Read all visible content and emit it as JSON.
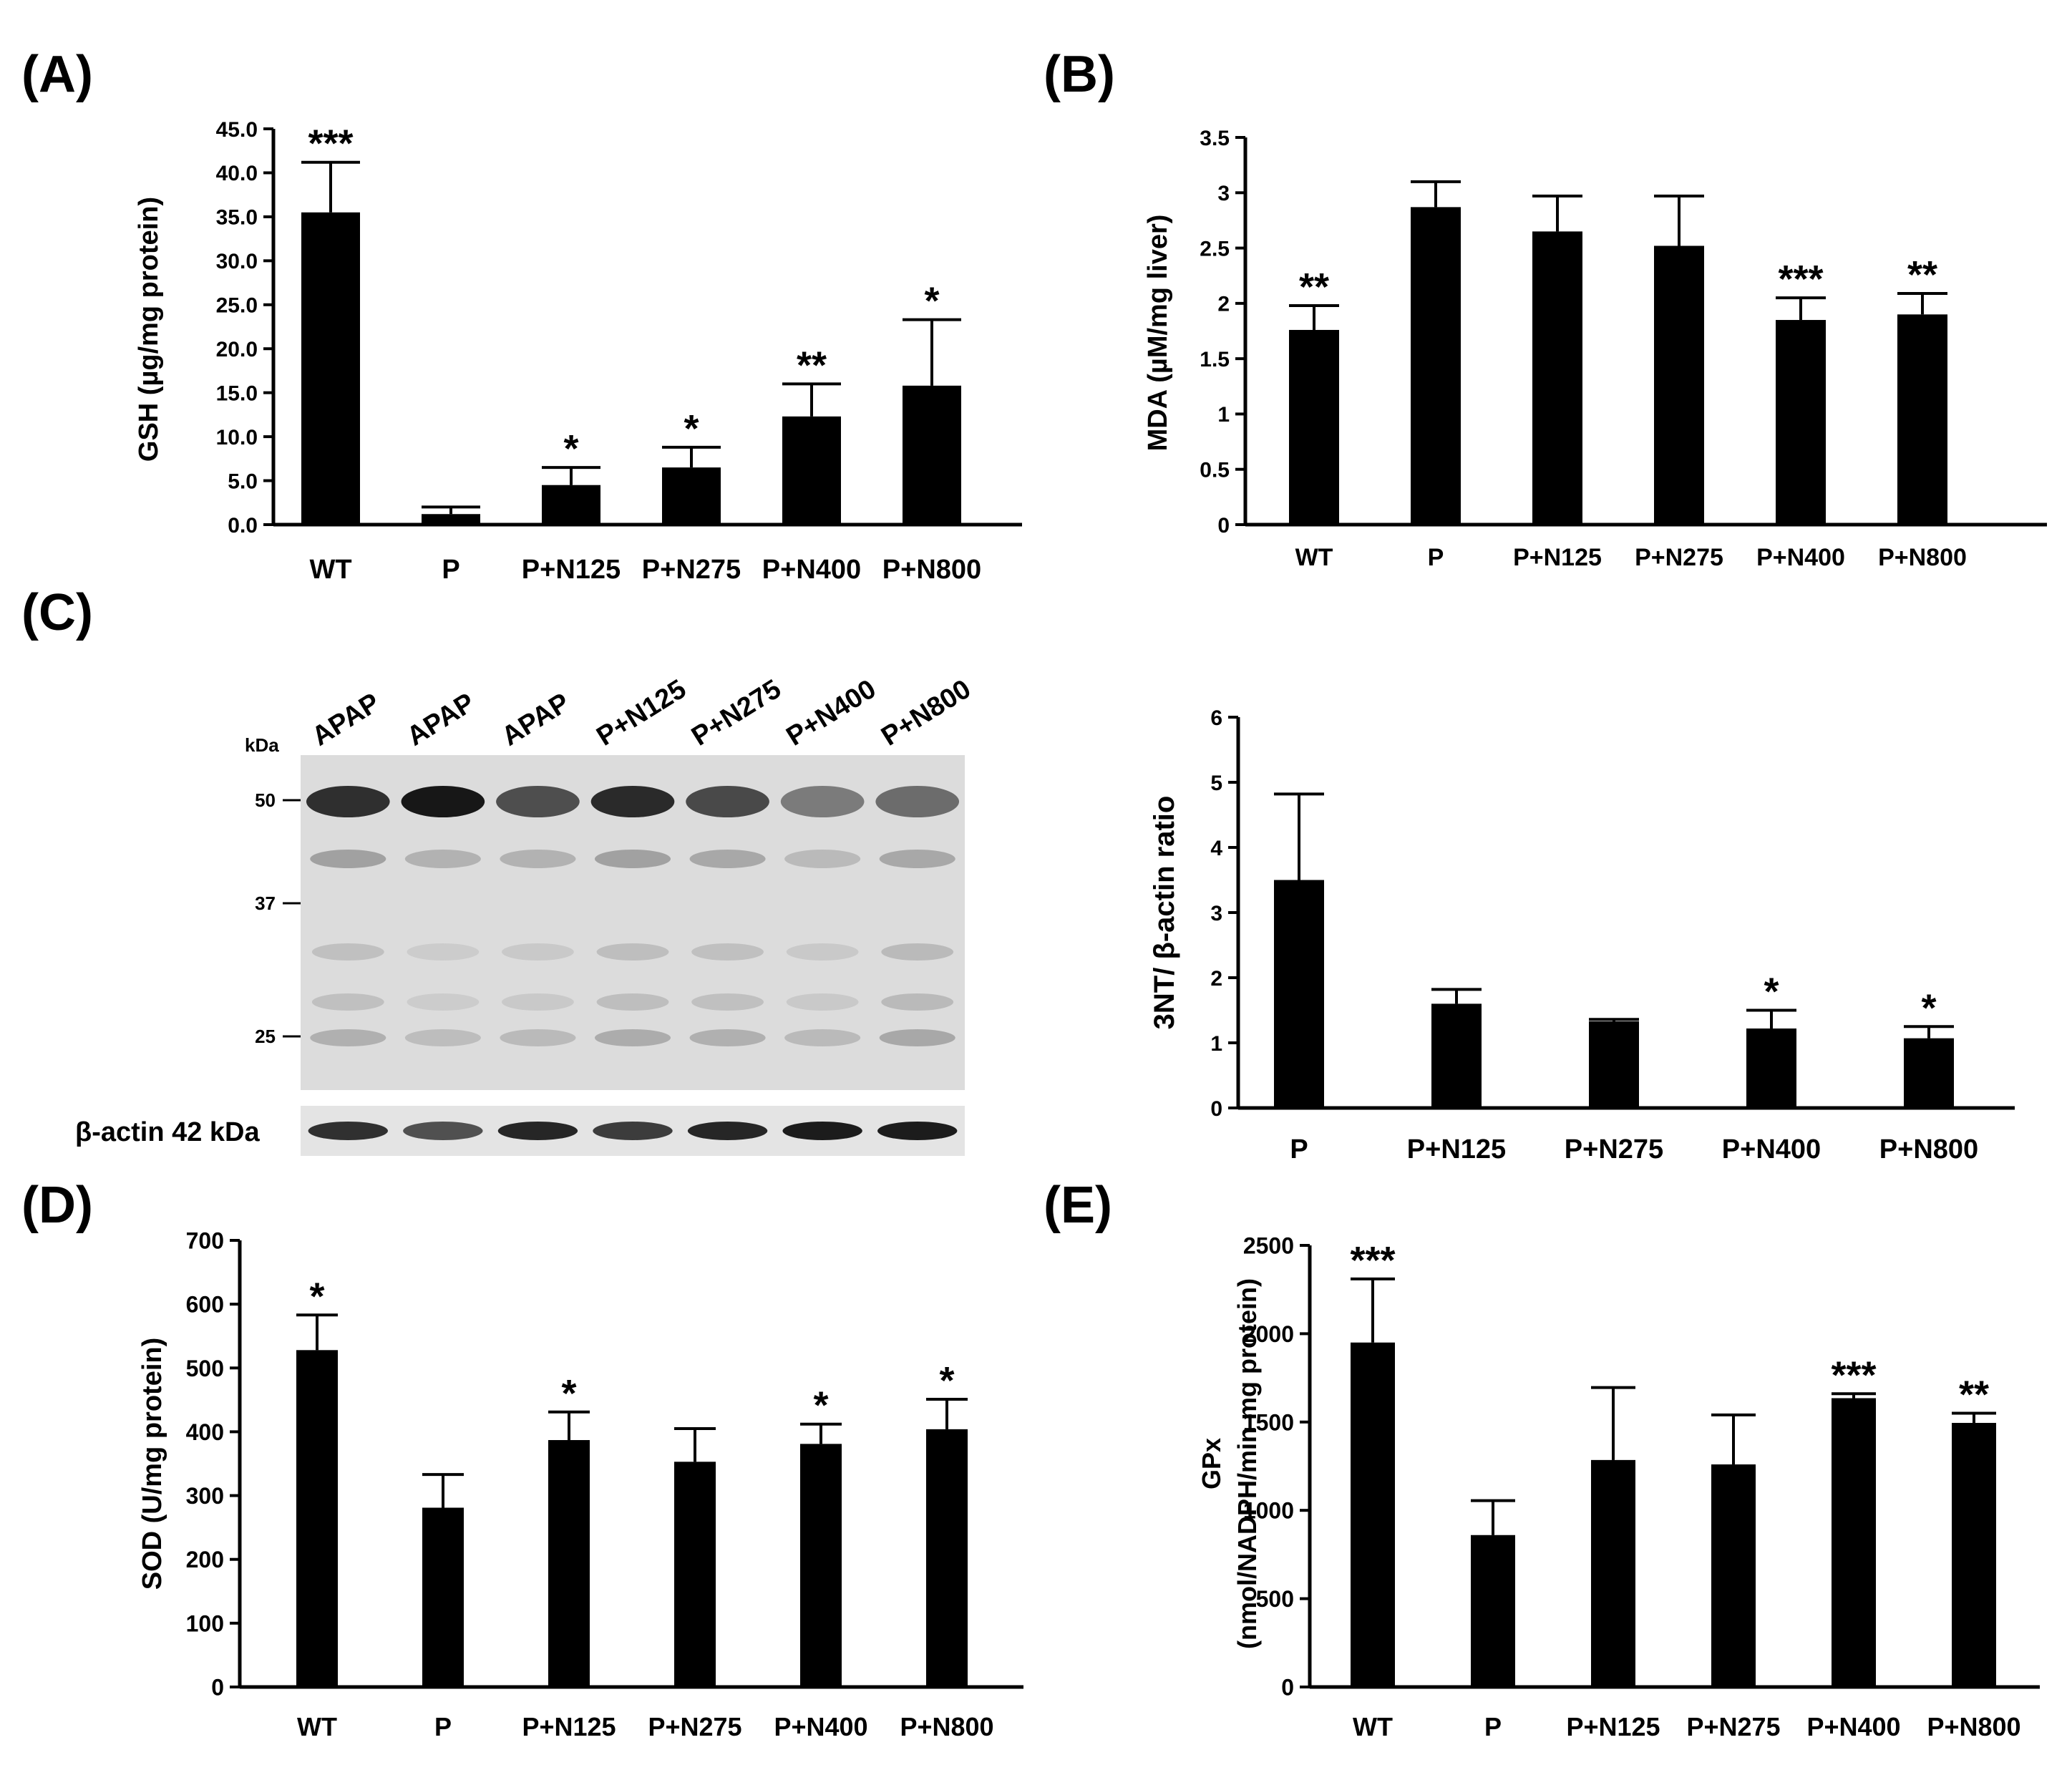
{
  "chart_data": [
    {
      "panel": "(A)",
      "type": "bar",
      "ylabel": "GSH (µg/mg protein)",
      "categories": [
        "WT",
        "P",
        "P+N125",
        "P+N275",
        "P+N400",
        "P+N800"
      ],
      "values": [
        35.5,
        1.2,
        4.5,
        6.5,
        12.3,
        15.8
      ],
      "errors": [
        5.7,
        0.8,
        2.0,
        2.3,
        3.7,
        7.5
      ],
      "significance": [
        "***",
        "",
        "*",
        "*",
        "**",
        "*"
      ],
      "ylim": [
        0,
        45
      ],
      "yticks": [
        "0.0",
        "5.0",
        "10.0",
        "15.0",
        "20.0",
        "25.0",
        "30.0",
        "35.0",
        "40.0",
        "45.0"
      ]
    },
    {
      "panel": "(B)",
      "type": "bar",
      "ylabel": "MDA (µM/mg liver)",
      "categories": [
        "WT",
        "P",
        "P+N125",
        "P+N275",
        "P+N400",
        "P+N800"
      ],
      "values": [
        1.76,
        2.87,
        2.65,
        2.52,
        1.85,
        1.9
      ],
      "errors": [
        0.22,
        0.23,
        0.32,
        0.45,
        0.2,
        0.19
      ],
      "significance": [
        "**",
        "",
        "",
        "",
        "***",
        "**"
      ],
      "ylim": [
        0,
        3.5
      ],
      "yticks": [
        "0",
        "0.5",
        "1",
        "1.5",
        "2",
        "2.5",
        "3",
        "3.5"
      ]
    },
    {
      "panel": "(C)",
      "type": "bar",
      "ylabel": "3NT/ β-actin ratio",
      "categories": [
        "P",
        "P+N125",
        "P+N275",
        "P+N400",
        "P+N800"
      ],
      "values": [
        3.5,
        1.6,
        1.33,
        1.22,
        1.07
      ],
      "errors": [
        1.32,
        0.22,
        0.03,
        0.28,
        0.18
      ],
      "significance": [
        "",
        "",
        "",
        "*",
        "*"
      ],
      "ylim": [
        0,
        6
      ],
      "yticks": [
        "0",
        "1",
        "2",
        "3",
        "4",
        "5",
        "6"
      ]
    },
    {
      "panel": "(D)",
      "type": "bar",
      "ylabel": "SOD (U/mg protein)",
      "categories": [
        "WT",
        "P",
        "P+N125",
        "P+N275",
        "P+N400",
        "P+N800"
      ],
      "values": [
        528,
        281,
        387,
        353,
        381,
        404
      ],
      "errors": [
        55,
        52,
        44,
        52,
        31,
        47
      ],
      "significance": [
        "*",
        "",
        "*",
        "",
        "*",
        "*"
      ],
      "ylim": [
        0,
        700
      ],
      "yticks": [
        "0",
        "100",
        "200",
        "300",
        "400",
        "500",
        "600",
        "700"
      ]
    },
    {
      "panel": "(E)",
      "type": "bar",
      "ylabel": "GPx",
      "ylabel2": "(nmol/NADPH/min mg protein)",
      "categories": [
        "WT",
        "P",
        "P+N125",
        "P+N275",
        "P+N400",
        "P+N800"
      ],
      "values": [
        1950,
        860,
        1285,
        1260,
        1635,
        1495
      ],
      "errors": [
        360,
        195,
        410,
        280,
        25,
        55
      ],
      "significance": [
        "***",
        "",
        "",
        "",
        "***",
        "**"
      ],
      "ylim": [
        0,
        2500
      ],
      "yticks": [
        "0",
        "500",
        "1000",
        "1500",
        "2000",
        "2500"
      ]
    }
  ],
  "blot": {
    "lane_labels": [
      "APAP",
      "APAP",
      "APAP",
      "P+N125",
      "P+N275",
      "P+N400",
      "P+N800"
    ],
    "kda_label": "kDa",
    "markers": [
      "50",
      "37",
      "25"
    ],
    "actin_label": "β-actin 42 kDa"
  }
}
